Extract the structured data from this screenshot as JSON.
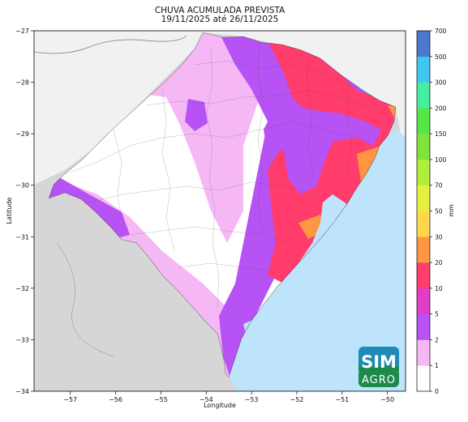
{
  "title": {
    "line1": "CHUVA ACUMULADA PREVISTA",
    "line2": "19/11/2025 até 26/11/2025"
  },
  "axes": {
    "xlabel": "Longitude",
    "ylabel": "Latitude",
    "xlim": [
      -57.8,
      -49.6
    ],
    "ylim": [
      -34,
      -27
    ],
    "xticks": [
      {
        "value": -57,
        "label": "−57"
      },
      {
        "value": -56,
        "label": "−56"
      },
      {
        "value": -55,
        "label": "−55"
      },
      {
        "value": -54,
        "label": "−54"
      },
      {
        "value": -53,
        "label": "−53"
      },
      {
        "value": -52,
        "label": "−52"
      },
      {
        "value": -51,
        "label": "−51"
      },
      {
        "value": -50,
        "label": "−50"
      }
    ],
    "yticks": [
      {
        "value": -27,
        "label": "−27"
      },
      {
        "value": -28,
        "label": "−28"
      },
      {
        "value": -29,
        "label": "−29"
      },
      {
        "value": -30,
        "label": "−30"
      },
      {
        "value": -31,
        "label": "−31"
      },
      {
        "value": -32,
        "label": "−32"
      },
      {
        "value": -33,
        "label": "−33"
      },
      {
        "value": -34,
        "label": "−34"
      }
    ]
  },
  "colorbar": {
    "unit": "mm",
    "levels": [
      {
        "label": "0",
        "color": "#ffffff"
      },
      {
        "label": "1",
        "color": "#f5b8f5"
      },
      {
        "label": "2",
        "color": "#b752f5"
      },
      {
        "label": "5",
        "color": "#e23cc9"
      },
      {
        "label": "10",
        "color": "#ff3c6b"
      },
      {
        "label": "20",
        "color": "#ff9642"
      },
      {
        "label": "30",
        "color": "#ffd84a"
      },
      {
        "label": "50",
        "color": "#e4f03f"
      },
      {
        "label": "70",
        "color": "#b0ee3a"
      },
      {
        "label": "100",
        "color": "#7fe33a"
      },
      {
        "label": "150",
        "color": "#55e845"
      },
      {
        "label": "200",
        "color": "#43ee9e"
      },
      {
        "label": "300",
        "color": "#40c7ef"
      },
      {
        "label": "500",
        "color": "#4b77cf"
      },
      {
        "label": "700",
        "color": "#484aa6"
      }
    ]
  },
  "colors": {
    "ocean": "#bde4fa",
    "land_outside": "#d6d6d6",
    "neighbor_land": "#f1f1f1"
  },
  "logo": {
    "top": "SIM",
    "bottom": "AGRO",
    "color_top": "#1d8ab8",
    "color_bottom": "#1e8a4a"
  }
}
